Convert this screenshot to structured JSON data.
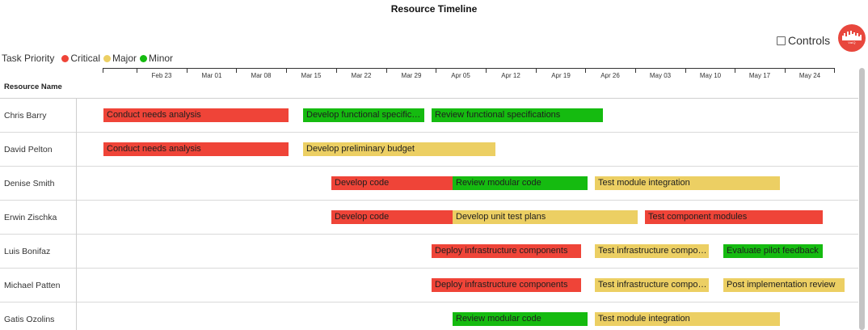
{
  "title": "Resource Timeline",
  "controls": {
    "label": "Controls",
    "checked": false
  },
  "logo": {
    "text": "ValQ"
  },
  "legend": {
    "title": "Task Priority",
    "items": [
      {
        "label": "Critical",
        "color": "#ef4438"
      },
      {
        "label": "Major",
        "color": "#eccf63"
      },
      {
        "label": "Minor",
        "color": "#15bb10"
      }
    ]
  },
  "timeline": {
    "ticks": [
      "Feb 23",
      "Mar 01",
      "Mar 08",
      "Mar 15",
      "Mar 22",
      "Mar 29",
      "Apr 05",
      "Apr 12",
      "Apr 19",
      "Apr 26",
      "May 03",
      "May 10",
      "May 17",
      "May 24"
    ]
  },
  "grid": {
    "header": "Resource Name"
  },
  "resources": [
    {
      "name": "Chris Barry",
      "tasks": [
        {
          "label": "Conduct needs analysis",
          "priority": "critical",
          "start": "2020-02-18",
          "end": "2020-03-15"
        },
        {
          "label": "Develop functional specificati...",
          "priority": "minor",
          "start": "2020-03-17",
          "end": "2020-04-03"
        },
        {
          "label": "Review functional specifications",
          "priority": "minor",
          "start": "2020-04-04",
          "end": "2020-04-28"
        }
      ]
    },
    {
      "name": "David Pelton",
      "tasks": [
        {
          "label": "Conduct needs analysis",
          "priority": "critical",
          "start": "2020-02-18",
          "end": "2020-03-15"
        },
        {
          "label": "Develop preliminary budget",
          "priority": "major",
          "start": "2020-03-17",
          "end": "2020-04-13"
        }
      ]
    },
    {
      "name": "Denise Smith",
      "tasks": [
        {
          "label": "Develop code",
          "priority": "critical",
          "start": "2020-03-21",
          "end": "2020-04-07"
        },
        {
          "label": "Review modular code",
          "priority": "minor",
          "start": "2020-04-07",
          "end": "2020-04-26"
        },
        {
          "label": "Test module integration",
          "priority": "major",
          "start": "2020-04-27",
          "end": "2020-05-23"
        }
      ]
    },
    {
      "name": "Erwin Zischka",
      "tasks": [
        {
          "label": "Develop code",
          "priority": "critical",
          "start": "2020-03-21",
          "end": "2020-04-07"
        },
        {
          "label": "Develop unit test plans",
          "priority": "major",
          "start": "2020-04-07",
          "end": "2020-05-03"
        },
        {
          "label": "Test component modules",
          "priority": "critical",
          "start": "2020-05-04",
          "end": "2020-05-29"
        }
      ]
    },
    {
      "name": "Luis Bonifaz",
      "tasks": [
        {
          "label": "Deploy infrastructure components",
          "priority": "critical",
          "start": "2020-04-04",
          "end": "2020-04-25"
        },
        {
          "label": "Test infrastructure compon...",
          "priority": "major",
          "start": "2020-04-27",
          "end": "2020-05-13"
        },
        {
          "label": "Evaluate pilot feedback",
          "priority": "minor",
          "start": "2020-05-15",
          "end": "2020-05-29"
        }
      ]
    },
    {
      "name": "Michael Patten",
      "tasks": [
        {
          "label": "Deploy infrastructure components",
          "priority": "critical",
          "start": "2020-04-04",
          "end": "2020-04-25"
        },
        {
          "label": "Test infrastructure compon...",
          "priority": "major",
          "start": "2020-04-27",
          "end": "2020-05-13"
        },
        {
          "label": "Post implementation review",
          "priority": "major",
          "start": "2020-05-15",
          "end": "2020-06-01"
        }
      ]
    },
    {
      "name": "Gatis Ozolins",
      "tasks": [
        {
          "label": "Review modular code",
          "priority": "minor",
          "start": "2020-04-07",
          "end": "2020-04-26"
        },
        {
          "label": "Test module integration",
          "priority": "major",
          "start": "2020-04-27",
          "end": "2020-05-23"
        }
      ]
    }
  ]
}
